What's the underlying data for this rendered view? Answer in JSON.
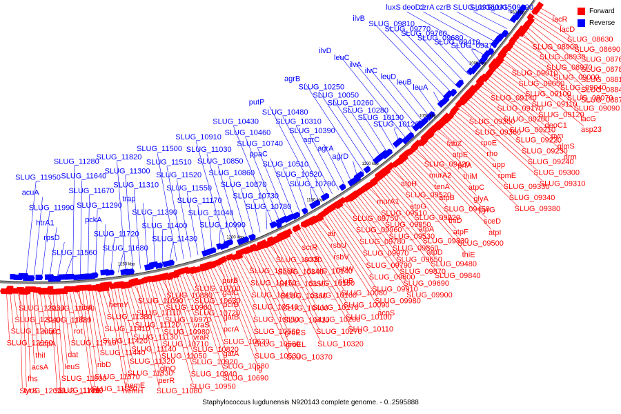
{
  "legend": {
    "forward_label": "Forward",
    "reverse_label": "Reverse",
    "forward_color": "#ff0000",
    "reverse_color": "#0000ff"
  },
  "caption": "Staphylococcus lugdunensis N920143 complete genome. - 0..2595888",
  "ticks": [
    {
      "label": "950 kbp"
    },
    {
      "label": "1000 kbp"
    },
    {
      "label": "1050 kbp"
    },
    {
      "label": "1100 kbp"
    },
    {
      "label": "1150 kbp"
    },
    {
      "label": "1200 kbp"
    },
    {
      "label": "1250 kbp"
    }
  ],
  "reverse_genes": [
    "SLUG_09020",
    "SLUG_09150",
    "SLUG_09160",
    "czrB",
    "czrA",
    "deoD2",
    "luxS",
    "SLUG_09370",
    "SLUG_09410",
    "SLUG_09680",
    "SLUG_09760",
    "SLUG_09770",
    "SLUG_09810",
    "ilvB",
    "leuA",
    "leuB",
    "leuD",
    "ilvC",
    "ilvA",
    "leuC",
    "ilvD",
    "SLUG_10120",
    "SLUG_10130",
    "SLUG_10280",
    "SLUG_10260",
    "SLUG_10050",
    "SLUG_10250",
    "agrB",
    "agrD",
    "agrA",
    "agrC",
    "SLUG_10390",
    "SLUG_10310",
    "SLUG_10480",
    "putP",
    "SLUG_10790",
    "SLUG_10520",
    "SLUG_10510",
    "ppaC",
    "SLUG_10740",
    "SLUG_10460",
    "SLUG_10430",
    "SLUG_10780",
    "SLUG_10730",
    "SLUG_10870",
    "SLUG_10860",
    "SLUG_10850",
    "SLUG_11030",
    "SLUG_10910",
    "SLUG_10990",
    "SLUG_11040",
    "SLUG_11170",
    "SLUG_11550",
    "SLUG_11520",
    "SLUG_11510",
    "SLUG_11500",
    "SLUG_11430",
    "SLUG_11400",
    "SLUG_11390",
    "trap",
    "SLUG_11310",
    "SLUG_11300",
    "SLUG_11820",
    "SLUG_11680",
    "SLUG_11720",
    "pckA",
    "SLUG_11290",
    "SLUG_11670",
    "SLUG_11640",
    "SLUG_11280",
    "SLUG_11560",
    "rpsD",
    "htrA1",
    "SLUG_11990",
    "acuA",
    "SLUG_11950"
  ],
  "forward_genes": [
    "lacR",
    "lacD",
    "SLUG_08630",
    "SLUG_08690",
    "SLUG_08760",
    "SLUG_08780",
    "SLUG_08810",
    "SLUG_08840",
    "SLUG_08870",
    "SLUG_08900",
    "SLUG_08930",
    "SLUG_08970",
    "SLUG_09000",
    "SLUG_09040",
    "SLUG_09070",
    "SLUG_09090",
    "lacG",
    "asp23",
    "SLUG_09010",
    "SLUG_09050",
    "SLUG_09100",
    "SLUG_09110",
    "SLUG_09120",
    "deoC1",
    "pyn",
    "glmS",
    "drm",
    "SLUG_09140",
    "SLUG_09170",
    "SLUG_09200",
    "SLUG_09210",
    "SLUG_09220",
    "SLUG_09230",
    "SLUG_09240",
    "SLUG_09300",
    "SLUG_09310",
    "SLUG_09350",
    "SLUG_09360",
    "rpoE",
    "rho",
    "upp",
    "rpmE",
    "SLUG_09330",
    "SLUG_09340",
    "SLUG_09380",
    "fabZ",
    "atpE",
    "prfA",
    "thiM",
    "atpC",
    "glyA",
    "pyrG",
    "sceD",
    "atpI",
    "SLUG_09420",
    "murA2",
    "tenA",
    "atpB",
    "SLUG_09450",
    "thiD",
    "atpF",
    "SLUG_09500",
    "thiE",
    "atpH",
    "SLUG_09520",
    "atpG",
    "SLUG_09820",
    "atpA",
    "SLUG_09830",
    "atpD",
    "SLUG_09480",
    "SLUG_09840",
    "murA1",
    "SLUG_09510",
    "SLUG_09850",
    "SLUG_09530",
    "SLUG_09860",
    "SLUG_09650",
    "SLUG_09870",
    "SLUG_09690",
    "SLUG_09900",
    "SLUG_09750",
    "SLUG_09960",
    "SLUG_09780",
    "SLUG_09970",
    "SLUG_09790",
    "SLUG_09800",
    "SLUG_09910",
    "SLUG_09980",
    "acpS",
    "alr",
    "rsbU",
    "rsbV",
    "rsbW",
    "sigB",
    "SLUG_10080",
    "SLUG_10090",
    "SLUG_10100",
    "SLUG_10110",
    "scrR",
    "scrB",
    "SLUG_10140",
    "SLUG_10150",
    "SLUG_10160",
    "SLUG_10170",
    "SLUG_10200",
    "SLUG_10270",
    "SLUG_10320",
    "SLUG_10330",
    "SLUG_10340",
    "SLUG_10350",
    "SLUG_10360",
    "SLUG_10400",
    "SLUG_10410",
    "groES",
    "groEL",
    "SLUG_10370",
    "SLUG_10380",
    "SLUG_10450",
    "SLUG_10490",
    "SLUG_10540",
    "SLUG_10550",
    "SLUG_10560",
    "SLUG_10580",
    "SLUG_10530",
    "lig",
    "purB",
    "gatC",
    "pcrB",
    "gatB",
    "pcrA",
    "SLUG_10620",
    "gatA",
    "SLUG_10680",
    "SLUG_10690",
    "SLUG_10700",
    "SLUG_10630",
    "SLUG_10720",
    "vraS",
    "vraR",
    "SLUG_10820",
    "SLUG_10920",
    "SLUG_10940",
    "SLUG_10950",
    "SLUG_10880",
    "SLUG_10960",
    "SLUG_10970",
    "SLUG_10980",
    "SLUG_10710",
    "SLUG_11050",
    "glnQ",
    "perR",
    "SLUG_11080",
    "SLUG_11090",
    "SLUG_11110",
    "SLUG_11120",
    "SLUG_11130",
    "SLUG_11140",
    "SLUG_11320",
    "SLUG_11330",
    "hemE",
    "hemH",
    "hemY",
    "SLUG_11380",
    "SLUG_11410",
    "SLUG_11420",
    "SLUG_11440",
    "ribD",
    "SLUG_11570",
    "SLUG_11580",
    "ribE",
    "ribA",
    "ribH",
    "rot",
    "SLUG_11710",
    "dat",
    "leuS",
    "SLUG_11800",
    "SLUG_11810",
    "SLUG_11770",
    "SLUG_11790",
    "SLUG_11830",
    "murC",
    "ccpA",
    "thiI",
    "acsA",
    "fhs",
    "tyrS",
    "SLUG_12020",
    "SLUG_12030",
    "SLUG_12040",
    "SLUG_12050",
    "SLUG_12060"
  ]
}
